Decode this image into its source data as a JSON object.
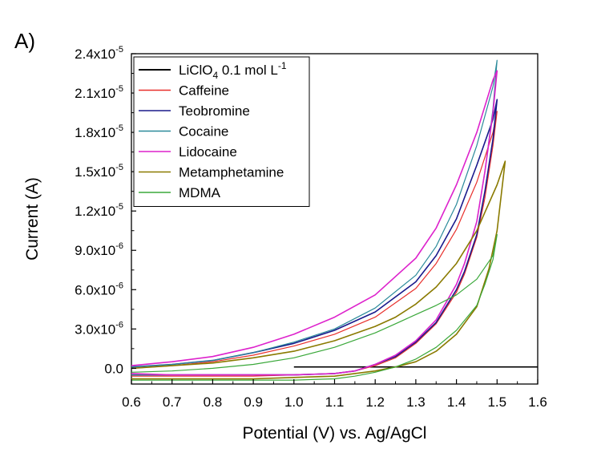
{
  "panel_label": "A)",
  "chart_data": {
    "type": "line",
    "xlabel": "Potential (V) vs. Ag/AgCl",
    "ylabel": "Current (A)",
    "xlim": [
      0.6,
      1.6
    ],
    "ylim": [
      -1.2e-06,
      2.4e-05
    ],
    "x_ticks": [
      {
        "value": 0.6,
        "label": "0.6"
      },
      {
        "value": 0.7,
        "label": "0.7"
      },
      {
        "value": 0.8,
        "label": "0.8"
      },
      {
        "value": 0.9,
        "label": "0.9"
      },
      {
        "value": 1.0,
        "label": "1.0"
      },
      {
        "value": 1.1,
        "label": "1.1"
      },
      {
        "value": 1.2,
        "label": "1.2"
      },
      {
        "value": 1.3,
        "label": "1.3"
      },
      {
        "value": 1.4,
        "label": "1.4"
      },
      {
        "value": 1.5,
        "label": "1.5"
      },
      {
        "value": 1.6,
        "label": "1.6"
      }
    ],
    "y_ticks": [
      {
        "value": 0,
        "label": "0.0"
      },
      {
        "value": 3e-06,
        "mantissa": "3.0x10",
        "exp": "-6"
      },
      {
        "value": 6e-06,
        "mantissa": "6.0x10",
        "exp": "-6"
      },
      {
        "value": 9e-06,
        "mantissa": "9.0x10",
        "exp": "-6"
      },
      {
        "value": 1.2e-05,
        "mantissa": "1.2x10",
        "exp": "-5"
      },
      {
        "value": 1.5e-05,
        "mantissa": "1.5x10",
        "exp": "-5"
      },
      {
        "value": 1.8e-05,
        "mantissa": "1.8x10",
        "exp": "-5"
      },
      {
        "value": 2.1e-05,
        "mantissa": "2.1x10",
        "exp": "-5"
      },
      {
        "value": 2.4e-05,
        "mantissa": "2.4x10",
        "exp": "-5"
      }
    ],
    "grid": false,
    "legend": {
      "position": "top-left",
      "entries": [
        {
          "name": "LiClO4 0.1 mol L-1",
          "parts": [
            {
              "text": "LiClO",
              "shift": "base"
            },
            {
              "text": "4",
              "shift": "sub"
            },
            {
              "text": " 0.1 mol L",
              "shift": "base"
            },
            {
              "text": "-1",
              "shift": "super"
            }
          ],
          "color": "#000000"
        },
        {
          "name": "Caffeine",
          "color": "#e8302c"
        },
        {
          "name": "Teobromine",
          "color": "#1a1a8c"
        },
        {
          "name": "Cocaine",
          "color": "#2a8a9a"
        },
        {
          "name": "Lidocaine",
          "color": "#dd22cc"
        },
        {
          "name": "Metamphetamine",
          "color": "#8a7a00"
        },
        {
          "name": "MDMA",
          "color": "#3aa83a"
        }
      ]
    },
    "series": [
      {
        "name": "LiClO4 0.1 mol L-1",
        "color": "#000000",
        "width": 1.6,
        "x": [
          1.0,
          1.6
        ],
        "y": [
          1e-07,
          1e-07
        ]
      },
      {
        "name": "Caffeine",
        "color": "#e8302c",
        "width": 1.2,
        "x": [
          0.6,
          0.7,
          0.8,
          0.9,
          1.0,
          1.1,
          1.2,
          1.3,
          1.35,
          1.4,
          1.45,
          1.49,
          1.5,
          1.49,
          1.47,
          1.45,
          1.42,
          1.4,
          1.35,
          1.3,
          1.25,
          1.2,
          1.15,
          1.1,
          1.0,
          0.9,
          0.8,
          0.7,
          0.6
        ],
        "y": [
          0,
          2e-07,
          5e-07,
          1e-06,
          1.7e-06,
          2.6e-06,
          3.9e-06,
          6.1e-06,
          8e-06,
          1.06e-05,
          1.42e-05,
          1.8e-05,
          1.96e-05,
          1.7e-05,
          1.3e-05,
          1e-05,
          7.2e-06,
          5.8e-06,
          3.4e-06,
          1.9e-06,
          8e-07,
          2e-07,
          -2e-07,
          -4e-07,
          -5e-07,
          -6e-07,
          -6e-07,
          -6e-07,
          -6e-07
        ]
      },
      {
        "name": "Teobromine",
        "color": "#1a1a8c",
        "width": 1.6,
        "x": [
          0.6,
          0.7,
          0.8,
          0.9,
          1.0,
          1.1,
          1.2,
          1.3,
          1.35,
          1.4,
          1.45,
          1.49,
          1.5,
          1.49,
          1.47,
          1.45,
          1.42,
          1.4,
          1.35,
          1.3,
          1.25,
          1.2,
          1.15,
          1.1,
          1.0,
          0.9,
          0.8,
          0.7,
          0.6
        ],
        "y": [
          1e-07,
          3e-07,
          6e-07,
          1.2e-06,
          1.9e-06,
          2.9e-06,
          4.3e-06,
          6.6e-06,
          8.6e-06,
          1.14e-05,
          1.55e-05,
          1.9e-05,
          2.05e-05,
          1.75e-05,
          1.35e-05,
          1.02e-05,
          7.4e-06,
          6e-06,
          3.5e-06,
          2e-06,
          9e-07,
          3e-07,
          -2e-07,
          -4e-07,
          -5e-07,
          -5e-07,
          -5e-07,
          -5e-07,
          -5e-07
        ]
      },
      {
        "name": "Cocaine",
        "color": "#2a8a9a",
        "width": 1.2,
        "x": [
          0.6,
          0.7,
          0.8,
          0.9,
          1.0,
          1.1,
          1.2,
          1.3,
          1.35,
          1.4,
          1.45,
          1.49,
          1.5,
          1.49,
          1.47,
          1.45,
          1.42,
          1.4,
          1.35,
          1.3,
          1.25,
          1.2,
          1.15,
          1.1,
          1.0,
          0.9,
          0.8,
          0.7,
          0.6
        ],
        "y": [
          1e-07,
          3e-07,
          6e-07,
          1.2e-06,
          2e-06,
          3e-06,
          4.6e-06,
          7.1e-06,
          9.3e-06,
          1.25e-05,
          1.7e-05,
          2.15e-05,
          2.35e-05,
          1.98e-05,
          1.5e-05,
          1.12e-05,
          8e-06,
          6.4e-06,
          3.7e-06,
          2.1e-06,
          1e-06,
          3e-07,
          -2e-07,
          -4e-07,
          -5e-07,
          -5e-07,
          -5e-07,
          -5e-07,
          -5e-07
        ]
      },
      {
        "name": "Lidocaine",
        "color": "#dd22cc",
        "width": 1.6,
        "x": [
          0.6,
          0.7,
          0.8,
          0.9,
          1.0,
          1.1,
          1.2,
          1.3,
          1.35,
          1.4,
          1.45,
          1.49,
          1.5,
          1.49,
          1.47,
          1.45,
          1.42,
          1.4,
          1.35,
          1.3,
          1.25,
          1.2,
          1.15,
          1.1,
          1.0,
          0.9,
          0.8,
          0.7,
          0.6
        ],
        "y": [
          2e-07,
          5e-07,
          9e-07,
          1.6e-06,
          2.6e-06,
          3.9e-06,
          5.6e-06,
          8.4e-06,
          1.07e-05,
          1.4e-05,
          1.8e-05,
          2.2e-05,
          2.27e-05,
          1.95e-05,
          1.5e-05,
          1.12e-05,
          8e-06,
          6.4e-06,
          3.7e-06,
          2.1e-06,
          1e-06,
          3e-07,
          -2e-07,
          -4e-07,
          -5e-07,
          -5e-07,
          -5e-07,
          -5e-07,
          -4e-07
        ]
      },
      {
        "name": "Metamphetamine",
        "color": "#8a7a00",
        "width": 1.6,
        "x": [
          0.6,
          0.7,
          0.8,
          0.9,
          1.0,
          1.1,
          1.2,
          1.25,
          1.3,
          1.35,
          1.4,
          1.45,
          1.5,
          1.52,
          1.5,
          1.48,
          1.45,
          1.4,
          1.35,
          1.3,
          1.25,
          1.2,
          1.15,
          1.1,
          1.0,
          0.9,
          0.8,
          0.7,
          0.6
        ],
        "y": [
          0,
          2e-07,
          4e-07,
          8e-07,
          1.3e-06,
          2.1e-06,
          3.2e-06,
          3.9e-06,
          4.9e-06,
          6.2e-06,
          8e-06,
          1.05e-05,
          1.4e-05,
          1.58e-05,
          1.05e-05,
          7.6e-06,
          4.7e-06,
          2.6e-06,
          1.3e-06,
          5e-07,
          1e-07,
          -2e-07,
          -4e-07,
          -6e-07,
          -7e-07,
          -8e-07,
          -8e-07,
          -8e-07,
          -8e-07
        ]
      },
      {
        "name": "MDMA",
        "color": "#3aa83a",
        "width": 1.2,
        "x": [
          0.6,
          0.7,
          0.8,
          0.9,
          1.0,
          1.1,
          1.2,
          1.25,
          1.3,
          1.35,
          1.4,
          1.45,
          1.49,
          1.5,
          1.49,
          1.47,
          1.45,
          1.4,
          1.35,
          1.3,
          1.25,
          1.2,
          1.15,
          1.1,
          1.0,
          0.9,
          0.8,
          0.7,
          0.6
        ],
        "y": [
          -3e-07,
          -2e-07,
          0,
          3e-07,
          8e-07,
          1.6e-06,
          2.7e-06,
          3.4e-06,
          4.1e-06,
          4.8e-06,
          5.6e-06,
          6.8e-06,
          8.6e-06,
          1.02e-05,
          8.3e-06,
          6.4e-06,
          4.8e-06,
          2.9e-06,
          1.6e-06,
          7e-07,
          1e-07,
          -3e-07,
          -6e-07,
          -8e-07,
          -9e-07,
          -9e-07,
          -9e-07,
          -9e-07,
          -9e-07
        ]
      }
    ]
  }
}
